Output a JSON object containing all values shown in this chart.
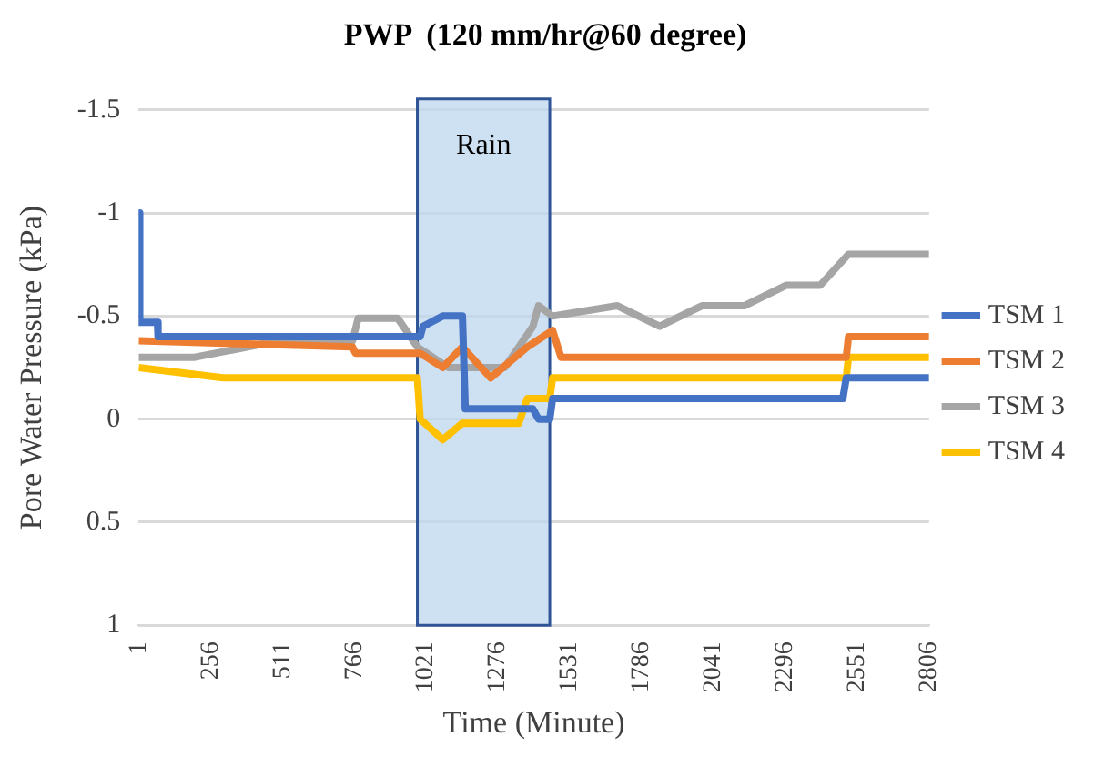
{
  "chart_data": {
    "type": "line",
    "title": "PWP  (120 mm/hr@60 degree)",
    "xlabel": "Time (Minute)",
    "ylabel": "Pore Water Pressure (kPa)",
    "xlim": [
      1,
      2806
    ],
    "xticks": [
      1,
      256,
      511,
      766,
      1021,
      1276,
      1531,
      1786,
      2041,
      2296,
      2551,
      2806
    ],
    "ylim": [
      1,
      -1.5
    ],
    "yticks": [
      -1.5,
      -1,
      -0.5,
      0,
      0.5,
      1
    ],
    "grid": "y",
    "legend": "right",
    "line_style": "solid",
    "marker": "none",
    "bands": [
      {
        "axis": "x",
        "from": 990,
        "to": 1460,
        "label": "Rain",
        "color": "#bdd7ee"
      }
    ],
    "series": [
      {
        "name": "TSM 1",
        "color": "#4472c4",
        "x": [
          1,
          5,
          68,
          70,
          1000,
          1010,
          1080,
          1150,
          1160,
          1400,
          1420,
          1460,
          1470,
          2500,
          2512,
          2806
        ],
        "values": [
          -1.0,
          -0.47,
          -0.47,
          -0.4,
          -0.4,
          -0.45,
          -0.5,
          -0.5,
          -0.05,
          -0.05,
          0,
          0,
          -0.1,
          -0.1,
          -0.2,
          -0.2
        ]
      },
      {
        "name": "TSM 2",
        "color": "#ed7d31",
        "x": [
          1,
          760,
          770,
          1000,
          1080,
          1150,
          1250,
          1380,
          1470,
          1500,
          2512,
          2520,
          2806
        ],
        "values": [
          -0.38,
          -0.35,
          -0.32,
          -0.32,
          -0.25,
          -0.35,
          -0.2,
          -0.35,
          -0.43,
          -0.3,
          -0.3,
          -0.4,
          -0.4
        ]
      },
      {
        "name": "TSM 3",
        "color": "#a5a5a5",
        "x": [
          1,
          200,
          500,
          760,
          780,
          920,
          990,
          1100,
          1300,
          1400,
          1420,
          1470,
          1700,
          1850,
          2000,
          2150,
          2300,
          2420,
          2520,
          2806
        ],
        "values": [
          -0.3,
          -0.3,
          -0.38,
          -0.38,
          -0.49,
          -0.49,
          -0.35,
          -0.25,
          -0.25,
          -0.45,
          -0.55,
          -0.5,
          -0.55,
          -0.45,
          -0.55,
          -0.55,
          -0.65,
          -0.65,
          -0.8,
          -0.8
        ]
      },
      {
        "name": "TSM 4",
        "color": "#ffc000",
        "x": [
          1,
          300,
          990,
          1000,
          1080,
          1150,
          1350,
          1380,
          1460,
          1470,
          2512,
          2520,
          2806
        ],
        "values": [
          -0.25,
          -0.2,
          -0.2,
          0,
          0.1,
          0.02,
          0.02,
          -0.1,
          -0.1,
          -0.2,
          -0.2,
          -0.3,
          -0.3
        ]
      }
    ]
  }
}
